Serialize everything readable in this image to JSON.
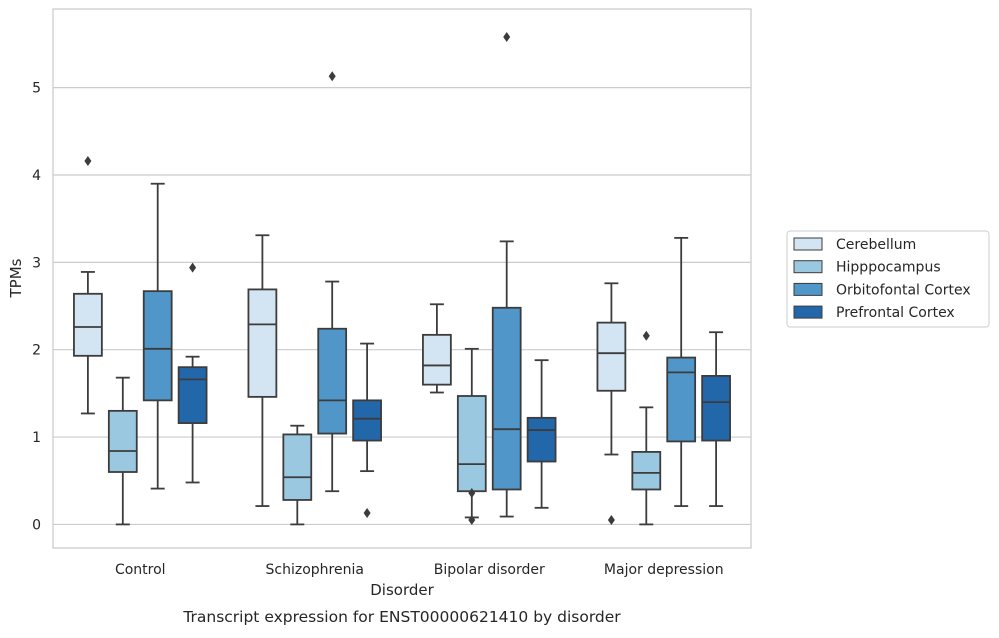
{
  "chart_data": {
    "type": "box",
    "caption": "Transcript expression for ENST00000621410 by disorder",
    "xlabel": "Disorder",
    "ylabel": "TPMs",
    "ylim": [
      -0.27,
      5.9
    ],
    "yticks": [
      0,
      1,
      2,
      3,
      4,
      5
    ],
    "grid": "horizontal",
    "legend_position": "right",
    "categories": [
      "Control",
      "Schizophrenia",
      "Bipolar disorder",
      "Major depression"
    ],
    "series": [
      {
        "name": "Cerebellum",
        "color": "#d3e4f3",
        "boxes": [
          {
            "whislo": 1.27,
            "q1": 1.93,
            "med": 2.26,
            "q3": 2.64,
            "whishi": 2.89,
            "fliers": [
              4.16
            ]
          },
          {
            "whislo": 0.21,
            "q1": 1.46,
            "med": 2.29,
            "q3": 2.69,
            "whishi": 3.31,
            "fliers": []
          },
          {
            "whislo": 1.51,
            "q1": 1.6,
            "med": 1.82,
            "q3": 2.17,
            "whishi": 2.52,
            "fliers": []
          },
          {
            "whislo": 0.8,
            "q1": 1.53,
            "med": 1.96,
            "q3": 2.31,
            "whishi": 2.76,
            "fliers": [
              0.05
            ]
          }
        ]
      },
      {
        "name": "Hipppocampus",
        "color": "#9ac8e0",
        "boxes": [
          {
            "whislo": 0.0,
            "q1": 0.6,
            "med": 0.84,
            "q3": 1.3,
            "whishi": 1.68,
            "fliers": []
          },
          {
            "whislo": 0.0,
            "q1": 0.28,
            "med": 0.54,
            "q3": 1.03,
            "whishi": 1.13,
            "fliers": []
          },
          {
            "whislo": 0.08,
            "q1": 0.38,
            "med": 0.69,
            "q3": 1.47,
            "whishi": 2.01,
            "fliers": [
              0.36,
              0.05
            ]
          },
          {
            "whislo": 0.0,
            "q1": 0.4,
            "med": 0.59,
            "q3": 0.83,
            "whishi": 1.34,
            "fliers": [
              2.16
            ]
          }
        ]
      },
      {
        "name": "Orbitofontal Cortex",
        "color": "#5096c8",
        "boxes": [
          {
            "whislo": 0.41,
            "q1": 1.42,
            "med": 2.01,
            "q3": 2.67,
            "whishi": 3.9,
            "fliers": []
          },
          {
            "whislo": 0.38,
            "q1": 1.04,
            "med": 1.42,
            "q3": 2.24,
            "whishi": 2.78,
            "fliers": [
              5.13
            ]
          },
          {
            "whislo": 0.09,
            "q1": 0.4,
            "med": 1.09,
            "q3": 2.48,
            "whishi": 3.24,
            "fliers": [
              5.58
            ]
          },
          {
            "whislo": 0.21,
            "q1": 0.95,
            "med": 1.74,
            "q3": 1.91,
            "whishi": 3.28,
            "fliers": []
          }
        ]
      },
      {
        "name": "Prefrontal Cortex",
        "color": "#2367ab",
        "boxes": [
          {
            "whislo": 0.48,
            "q1": 1.16,
            "med": 1.66,
            "q3": 1.8,
            "whishi": 1.92,
            "fliers": [
              2.94
            ]
          },
          {
            "whislo": 0.61,
            "q1": 0.96,
            "med": 1.21,
            "q3": 1.42,
            "whishi": 2.07,
            "fliers": [
              0.13
            ]
          },
          {
            "whislo": 0.19,
            "q1": 0.72,
            "med": 1.08,
            "q3": 1.22,
            "whishi": 1.88,
            "fliers": []
          },
          {
            "whislo": 0.21,
            "q1": 0.96,
            "med": 1.4,
            "q3": 1.7,
            "whishi": 2.2,
            "fliers": []
          }
        ]
      }
    ]
  }
}
